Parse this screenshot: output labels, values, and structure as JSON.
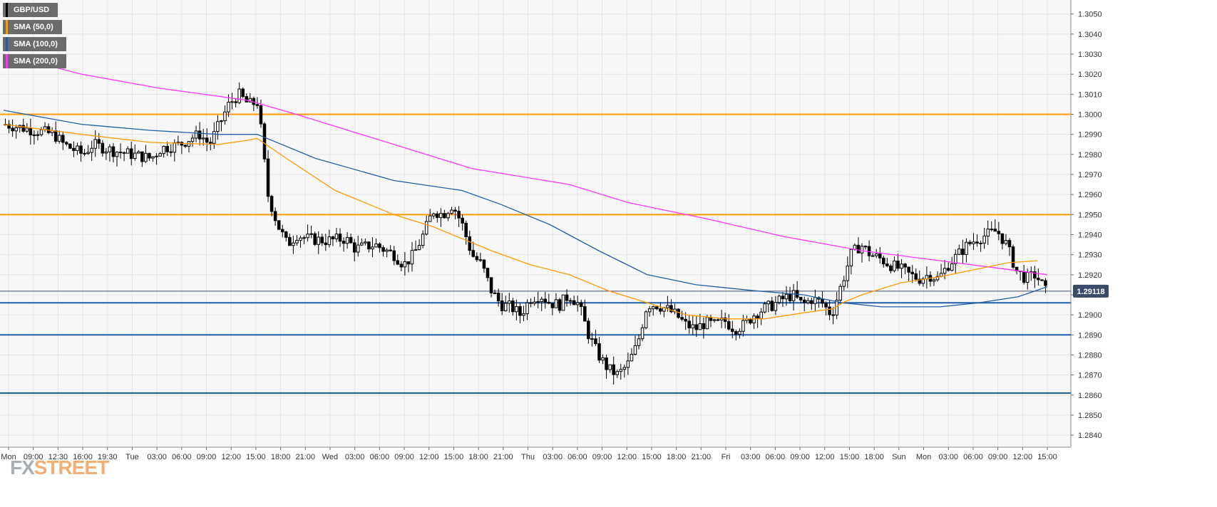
{
  "legend": [
    {
      "label": "GBP/USD",
      "color": "#000000"
    },
    {
      "label": "SMA (50,0)",
      "color": "#ff9900"
    },
    {
      "label": "SMA (100,0)",
      "color": "#1e5fa8"
    },
    {
      "label": "SMA (200,0)",
      "color": "#ff33ff"
    }
  ],
  "logo": {
    "fx": "FX",
    "street": "STREET"
  },
  "chart_data": {
    "type": "candlestick",
    "symbol": "GBP/USD",
    "ylim": [
      1.2834,
      1.3057
    ],
    "y_ticks": [
      "1.3050",
      "1.3040",
      "1.3030",
      "1.3020",
      "1.3010",
      "1.3000",
      "1.2990",
      "1.2980",
      "1.2970",
      "1.2960",
      "1.2950",
      "1.2940",
      "1.2930",
      "1.2920",
      "1.2910",
      "1.2900",
      "1.2890",
      "1.2880",
      "1.2870",
      "1.2860",
      "1.2850",
      "1.2840"
    ],
    "x_ticks": [
      "Mon",
      "09:00",
      "12:30",
      "16:00",
      "19:30",
      "Tue",
      "03:00",
      "06:00",
      "09:00",
      "12:00",
      "15:00",
      "18:00",
      "21:00",
      "Wed",
      "03:00",
      "06:00",
      "09:00",
      "12:00",
      "15:00",
      "18:00",
      "21:00",
      "Thu",
      "03:00",
      "06:00",
      "09:00",
      "12:00",
      "15:00",
      "18:00",
      "21:00",
      "Fri",
      "03:00",
      "06:00",
      "09:00",
      "12:00",
      "15:00",
      "18:00",
      "Sun",
      "Mon",
      "03:00",
      "06:00",
      "09:00",
      "12:00",
      "15:00"
    ],
    "current_price": "1.29118",
    "horizontal_levels": [
      {
        "value": 1.3,
        "color": "#ff9900"
      },
      {
        "value": 1.295,
        "color": "#ff9900"
      },
      {
        "value": 1.2906,
        "color": "#1e5fa8"
      },
      {
        "value": 1.289,
        "color": "#1e5fa8"
      },
      {
        "value": 1.2861,
        "color": "#1e5fa8"
      }
    ],
    "price_path": [
      [
        0,
        1.2995
      ],
      [
        3,
        1.2992
      ],
      [
        5,
        1.299
      ],
      [
        6,
        1.2985
      ],
      [
        8,
        1.298
      ],
      [
        9,
        1.2985
      ],
      [
        11,
        1.2982
      ],
      [
        13,
        1.298
      ],
      [
        15,
        1.2978
      ],
      [
        16,
        1.2983
      ],
      [
        18,
        1.2985
      ],
      [
        19,
        1.2988
      ],
      [
        20,
        1.299
      ],
      [
        21,
        1.2985
      ],
      [
        22,
        1.2995
      ],
      [
        23,
        1.3005
      ],
      [
        24,
        1.301
      ],
      [
        25,
        1.3005
      ],
      [
        26,
        1.3006
      ],
      [
        27,
        1.296
      ],
      [
        28,
        1.2945
      ],
      [
        29,
        1.2935
      ],
      [
        30,
        1.294
      ],
      [
        31,
        1.2938
      ],
      [
        33,
        1.2937
      ],
      [
        35,
        1.2938
      ],
      [
        36,
        1.2933
      ],
      [
        38,
        1.2935
      ],
      [
        40,
        1.293
      ],
      [
        41,
        1.2925
      ],
      [
        42,
        1.293
      ],
      [
        43,
        1.294
      ],
      [
        44,
        1.2952
      ],
      [
        45,
        1.295
      ],
      [
        46,
        1.2955
      ],
      [
        47,
        1.2945
      ],
      [
        48,
        1.293
      ],
      [
        49,
        1.2925
      ],
      [
        50,
        1.2912
      ],
      [
        51,
        1.2905
      ],
      [
        52,
        1.2904
      ],
      [
        53,
        1.29
      ],
      [
        54,
        1.2908
      ],
      [
        55,
        1.291
      ],
      [
        56,
        1.2906
      ],
      [
        57,
        1.2905
      ],
      [
        58,
        1.291
      ],
      [
        59,
        1.2905
      ],
      [
        60,
        1.289
      ],
      [
        61,
        1.288
      ],
      [
        62,
        1.2873
      ],
      [
        63,
        1.287
      ],
      [
        64,
        1.2875
      ],
      [
        65,
        1.2885
      ],
      [
        66,
        1.2905
      ],
      [
        67,
        1.2905
      ],
      [
        68,
        1.2903
      ],
      [
        69,
        1.29
      ],
      [
        70,
        1.2895
      ],
      [
        71,
        1.2893
      ],
      [
        72,
        1.2896
      ],
      [
        73,
        1.2895
      ],
      [
        74,
        1.2897
      ],
      [
        75,
        1.2893
      ],
      [
        76,
        1.2895
      ],
      [
        77,
        1.29
      ],
      [
        78,
        1.2903
      ],
      [
        79,
        1.2905
      ],
      [
        80,
        1.2908
      ],
      [
        81,
        1.291
      ],
      [
        82,
        1.2905
      ],
      [
        83,
        1.2908
      ],
      [
        84,
        1.2906
      ],
      [
        85,
        1.29
      ],
      [
        86,
        1.2915
      ],
      [
        87,
        1.293
      ],
      [
        88,
        1.2935
      ],
      [
        89,
        1.293
      ],
      [
        90,
        1.2928
      ],
      [
        91,
        1.2925
      ],
      [
        92,
        1.2923
      ],
      [
        93,
        1.292
      ],
      [
        94,
        1.2918
      ],
      [
        95,
        1.292
      ],
      [
        96,
        1.2918
      ],
      [
        97,
        1.2925
      ],
      [
        98,
        1.293
      ],
      [
        99,
        1.2935
      ],
      [
        100,
        1.2938
      ],
      [
        101,
        1.294
      ],
      [
        102,
        1.2942
      ],
      [
        103,
        1.2935
      ],
      [
        104,
        1.2922
      ],
      [
        105,
        1.2918
      ],
      [
        106,
        1.292
      ],
      [
        107,
        1.2912
      ]
    ],
    "sma50": [
      [
        0,
        1.2995
      ],
      [
        8,
        1.299
      ],
      [
        15,
        1.2986
      ],
      [
        22,
        1.2985
      ],
      [
        25,
        1.2987
      ],
      [
        26,
        1.2988
      ],
      [
        29,
        1.2978
      ],
      [
        34,
        1.2962
      ],
      [
        40,
        1.295
      ],
      [
        44,
        1.2944
      ],
      [
        47,
        1.2938
      ],
      [
        50,
        1.2932
      ],
      [
        54,
        1.2925
      ],
      [
        58,
        1.292
      ],
      [
        62,
        1.2912
      ],
      [
        66,
        1.2906
      ],
      [
        70,
        1.29
      ],
      [
        74,
        1.2898
      ],
      [
        78,
        1.2898
      ],
      [
        82,
        1.2901
      ],
      [
        85,
        1.2903
      ],
      [
        86,
        1.2906
      ],
      [
        88,
        1.291
      ],
      [
        92,
        1.2916
      ],
      [
        96,
        1.2919
      ],
      [
        100,
        1.2923
      ],
      [
        103,
        1.2926
      ],
      [
        106,
        1.2927
      ]
    ],
    "sma100": [
      [
        0,
        1.3002
      ],
      [
        8,
        1.2995
      ],
      [
        15,
        1.2992
      ],
      [
        22,
        1.299
      ],
      [
        26,
        1.299
      ],
      [
        32,
        1.2978
      ],
      [
        40,
        1.2967
      ],
      [
        47,
        1.2962
      ],
      [
        51,
        1.2955
      ],
      [
        56,
        1.2945
      ],
      [
        61,
        1.2932
      ],
      [
        66,
        1.292
      ],
      [
        71,
        1.2915
      ],
      [
        77,
        1.2912
      ],
      [
        82,
        1.291
      ],
      [
        86,
        1.2906
      ],
      [
        90,
        1.2904
      ],
      [
        96,
        1.2904
      ],
      [
        100,
        1.2906
      ],
      [
        104,
        1.2909
      ],
      [
        107,
        1.2914
      ]
    ],
    "sma200": [
      [
        0,
        1.303
      ],
      [
        8,
        1.302
      ],
      [
        16,
        1.3013
      ],
      [
        25,
        1.3007
      ],
      [
        30,
        1.3
      ],
      [
        40,
        1.2985
      ],
      [
        48,
        1.2973
      ],
      [
        58,
        1.2965
      ],
      [
        64,
        1.2956
      ],
      [
        72,
        1.2948
      ],
      [
        80,
        1.2939
      ],
      [
        88,
        1.2932
      ],
      [
        96,
        1.2927
      ],
      [
        104,
        1.2922
      ],
      [
        107,
        1.292
      ]
    ]
  }
}
